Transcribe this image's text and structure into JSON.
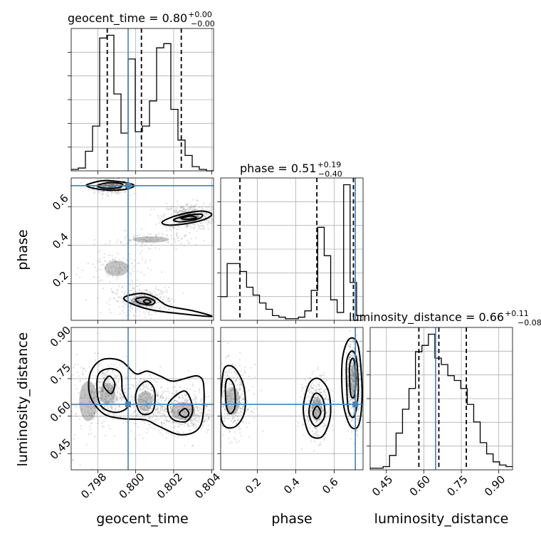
{
  "chart_data": {
    "type": "corner",
    "parameters": [
      "geocent_time",
      "phase",
      "luminosity_distance"
    ],
    "truths": {
      "geocent_time": 0.7996,
      "phase": 0.71,
      "luminosity_distance": 0.647
    },
    "ranges": {
      "geocent_time": [
        0.7966,
        0.8041
      ],
      "phase": [
        0.01,
        0.75
      ],
      "luminosity_distance": [
        0.385,
        0.955
      ]
    },
    "titles": [
      {
        "label": "geocent_time = 0.80",
        "sup": "+0.00",
        "sub": "−0.00"
      },
      {
        "label": "phase = 0.51",
        "sup": "+0.19",
        "sub": "−0.40"
      },
      {
        "label": "luminosity_distance = 0.66",
        "sup": "+0.11",
        "sub": "−0.08"
      }
    ],
    "axis_labels": [
      "geocent_time",
      "phase",
      "luminosity_distance"
    ],
    "ticks": {
      "geocent_time": {
        "values": [
          0.798,
          0.8,
          0.802,
          0.804
        ],
        "labels": [
          "0.798",
          "0.800",
          "0.802",
          "0.804"
        ]
      },
      "phase": {
        "values": [
          0.2,
          0.4,
          0.6
        ],
        "labels": [
          "0.2",
          "0.4",
          "0.6"
        ]
      },
      "luminosity_distance": {
        "values": [
          0.45,
          0.6,
          0.75,
          0.9
        ],
        "labels": [
          "0.45",
          "0.60",
          "0.75",
          "0.90"
        ]
      }
    },
    "quantiles": {
      "geocent_time": [
        0.7985,
        0.8003,
        0.8024
      ],
      "phase": [
        0.11,
        0.51,
        0.7
      ],
      "luminosity_distance": [
        0.58,
        0.66,
        0.77
      ]
    },
    "histograms": {
      "geocent_time": {
        "range": [
          0.7966,
          0.8041
        ],
        "counts": [
          1,
          2,
          14,
          32,
          95,
          97,
          55,
          27,
          80,
          28,
          32,
          50,
          88,
          91,
          44,
          22,
          11,
          3,
          1,
          0
        ]
      },
      "phase": {
        "range": [
          0.01,
          0.75
        ],
        "counts": [
          15,
          36,
          36,
          31,
          21,
          16,
          11,
          7,
          3,
          2,
          1,
          1,
          2,
          6,
          19,
          59,
          41,
          13,
          5,
          86,
          24,
          3
        ]
      },
      "luminosity_distance": {
        "range": [
          0.385,
          0.955
        ],
        "counts": [
          1,
          1,
          2,
          9,
          23,
          38,
          51,
          74,
          78,
          85,
          70,
          66,
          59,
          56,
          51,
          41,
          30,
          17,
          10,
          5,
          3,
          2
        ]
      }
    },
    "density_clusters": {
      "geocent_time__phase": [
        {
          "x": 0.7987,
          "y": 0.705,
          "sx": 0.00045,
          "sy": 0.018,
          "w": 0.3
        },
        {
          "x": 0.8028,
          "y": 0.55,
          "sx": 0.0007,
          "sy": 0.035,
          "w": 0.28
        },
        {
          "x": 0.8004,
          "y": 0.11,
          "sx": 0.0008,
          "sy": 0.035,
          "w": 0.25
        },
        {
          "x": 0.8008,
          "y": 0.43,
          "sx": 0.0012,
          "sy": 0.02,
          "w": 0.08
        },
        {
          "x": 0.799,
          "y": 0.28,
          "sx": 0.0008,
          "sy": 0.05,
          "w": 0.09
        }
      ],
      "geocent_time__luminosity_distance": [
        {
          "x": 0.7985,
          "y": 0.69,
          "sx": 0.0005,
          "sy": 0.055,
          "w": 0.32
        },
        {
          "x": 0.8005,
          "y": 0.66,
          "sx": 0.0005,
          "sy": 0.05,
          "w": 0.25
        },
        {
          "x": 0.8025,
          "y": 0.62,
          "sx": 0.0008,
          "sy": 0.045,
          "w": 0.35
        },
        {
          "x": 0.7975,
          "y": 0.66,
          "sx": 0.0006,
          "sy": 0.1,
          "w": 0.08
        }
      ],
      "phase__luminosity_distance": [
        {
          "x": 0.07,
          "y": 0.66,
          "sx": 0.05,
          "sy": 0.07,
          "w": 0.3
        },
        {
          "x": 0.51,
          "y": 0.63,
          "sx": 0.035,
          "sy": 0.06,
          "w": 0.3
        },
        {
          "x": 0.7,
          "y": 0.74,
          "sx": 0.022,
          "sy": 0.085,
          "w": 0.4
        }
      ]
    },
    "contours": {
      "geocent_time__phase": [
        [
          [
            0.7977,
            0.724
          ],
          [
            0.7983,
            0.736
          ],
          [
            0.7992,
            0.73
          ],
          [
            0.7999,
            0.713
          ],
          [
            0.7996,
            0.694
          ],
          [
            0.7988,
            0.686
          ],
          [
            0.7979,
            0.694
          ],
          [
            0.7974,
            0.71
          ]
        ],
        [
          [
            0.7981,
            0.716
          ],
          [
            0.7987,
            0.726
          ],
          [
            0.7993,
            0.718
          ],
          [
            0.7991,
            0.699
          ],
          [
            0.7984,
            0.697
          ],
          [
            0.798,
            0.706
          ]
        ],
        [
          [
            0.8014,
            0.522
          ],
          [
            0.8022,
            0.556
          ],
          [
            0.8034,
            0.578
          ],
          [
            0.804,
            0.562
          ],
          [
            0.8036,
            0.534
          ],
          [
            0.8026,
            0.512
          ],
          [
            0.8017,
            0.505
          ]
        ],
        [
          [
            0.802,
            0.533
          ],
          [
            0.8028,
            0.557
          ],
          [
            0.8035,
            0.56
          ],
          [
            0.8033,
            0.538
          ],
          [
            0.8024,
            0.522
          ]
        ],
        [
          [
            0.8024,
            0.54
          ],
          [
            0.8029,
            0.552
          ],
          [
            0.8032,
            0.543
          ],
          [
            0.8027,
            0.535
          ]
        ],
        [
          [
            0.7994,
            0.13
          ],
          [
            0.8003,
            0.15
          ],
          [
            0.801,
            0.13
          ],
          [
            0.8017,
            0.085
          ],
          [
            0.803,
            0.06
          ],
          [
            0.804,
            0.03
          ],
          [
            0.8022,
            0.046
          ],
          [
            0.8008,
            0.065
          ],
          [
            0.7997,
            0.1
          ]
        ],
        [
          [
            0.8,
            0.12
          ],
          [
            0.8005,
            0.13
          ],
          [
            0.801,
            0.11
          ],
          [
            0.8008,
            0.09
          ],
          [
            0.8002,
            0.1
          ]
        ],
        [
          [
            0.8004,
            0.108
          ],
          [
            0.8006,
            0.118
          ],
          [
            0.8008,
            0.105
          ],
          [
            0.8006,
            0.098
          ]
        ]
      ],
      "geocent_time__luminosity_distance": [
        [
          [
            0.7976,
            0.77
          ],
          [
            0.7982,
            0.825
          ],
          [
            0.7992,
            0.822
          ],
          [
            0.8,
            0.77
          ],
          [
            0.8006,
            0.78
          ],
          [
            0.8013,
            0.76
          ],
          [
            0.802,
            0.74
          ],
          [
            0.8033,
            0.76
          ],
          [
            0.8036,
            0.7
          ],
          [
            0.8034,
            0.56
          ],
          [
            0.8024,
            0.525
          ],
          [
            0.8012,
            0.56
          ],
          [
            0.8005,
            0.585
          ],
          [
            0.7993,
            0.59
          ],
          [
            0.7983,
            0.61
          ],
          [
            0.7976,
            0.68
          ]
        ],
        [
          [
            0.798,
            0.76
          ],
          [
            0.7986,
            0.79
          ],
          [
            0.7992,
            0.77
          ],
          [
            0.7993,
            0.7
          ],
          [
            0.7996,
            0.64
          ],
          [
            0.7989,
            0.615
          ],
          [
            0.7981,
            0.65
          ]
        ],
        [
          [
            0.8001,
            0.71
          ],
          [
            0.8006,
            0.74
          ],
          [
            0.801,
            0.7
          ],
          [
            0.8009,
            0.62
          ],
          [
            0.8003,
            0.61
          ],
          [
            0.8,
            0.66
          ]
        ],
        [
          [
            0.8018,
            0.66
          ],
          [
            0.8026,
            0.7
          ],
          [
            0.803,
            0.63
          ],
          [
            0.8027,
            0.58
          ],
          [
            0.802,
            0.585
          ],
          [
            0.8017,
            0.62
          ]
        ],
        [
          [
            0.7983,
            0.725
          ],
          [
            0.7986,
            0.76
          ],
          [
            0.7989,
            0.73
          ],
          [
            0.7987,
            0.69
          ]
        ],
        [
          [
            0.8023,
            0.61
          ],
          [
            0.8026,
            0.63
          ],
          [
            0.8028,
            0.61
          ],
          [
            0.8026,
            0.595
          ]
        ]
      ],
      "phase__luminosity_distance": [
        [
          [
            0.02,
            0.76
          ],
          [
            0.04,
            0.8
          ],
          [
            0.085,
            0.79
          ],
          [
            0.13,
            0.72
          ],
          [
            0.135,
            0.62
          ],
          [
            0.09,
            0.56
          ],
          [
            0.03,
            0.56
          ],
          [
            0.01,
            0.62
          ]
        ],
        [
          [
            0.035,
            0.72
          ],
          [
            0.05,
            0.75
          ],
          [
            0.08,
            0.72
          ],
          [
            0.085,
            0.64
          ],
          [
            0.06,
            0.61
          ],
          [
            0.04,
            0.64
          ]
        ],
        [
          [
            0.44,
            0.64
          ],
          [
            0.47,
            0.73
          ],
          [
            0.52,
            0.75
          ],
          [
            0.57,
            0.7
          ],
          [
            0.58,
            0.6
          ],
          [
            0.54,
            0.52
          ],
          [
            0.48,
            0.52
          ],
          [
            0.45,
            0.57
          ]
        ],
        [
          [
            0.47,
            0.63
          ],
          [
            0.5,
            0.69
          ],
          [
            0.54,
            0.67
          ],
          [
            0.55,
            0.6
          ],
          [
            0.51,
            0.56
          ],
          [
            0.48,
            0.58
          ]
        ],
        [
          [
            0.49,
            0.61
          ],
          [
            0.51,
            0.64
          ],
          [
            0.53,
            0.615
          ],
          [
            0.51,
            0.59
          ]
        ],
        [
          [
            0.645,
            0.84
          ],
          [
            0.68,
            0.91
          ],
          [
            0.725,
            0.88
          ],
          [
            0.745,
            0.7
          ],
          [
            0.73,
            0.57
          ],
          [
            0.69,
            0.555
          ],
          [
            0.655,
            0.62
          ],
          [
            0.64,
            0.72
          ]
        ],
        [
          [
            0.665,
            0.82
          ],
          [
            0.69,
            0.86
          ],
          [
            0.715,
            0.83
          ],
          [
            0.725,
            0.7
          ],
          [
            0.705,
            0.6
          ],
          [
            0.675,
            0.62
          ],
          [
            0.665,
            0.72
          ]
        ],
        [
          [
            0.68,
            0.8
          ],
          [
            0.7,
            0.83
          ],
          [
            0.712,
            0.76
          ],
          [
            0.705,
            0.68
          ],
          [
            0.685,
            0.69
          ]
        ]
      ]
    }
  }
}
